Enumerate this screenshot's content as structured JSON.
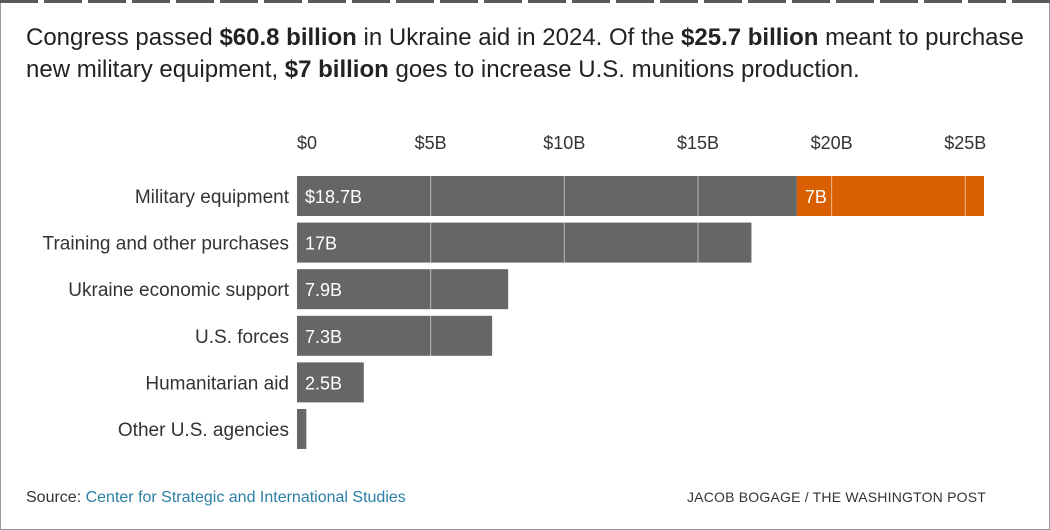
{
  "headline": {
    "part1": "Congress passed ",
    "bold1": "$60.8 billion",
    "part2": " in Ukraine aid in 2024. Of the ",
    "bold2": "$25.7 billion",
    "part3": " meant to purchase new military equipment, ",
    "bold3": "$7 billion",
    "part4": " goes to increase U.S. munitions production."
  },
  "chart_data": {
    "type": "bar",
    "orientation": "horizontal",
    "stacked": true,
    "xlim": [
      0,
      25.7
    ],
    "x_ticks": [
      {
        "value": 0,
        "label": "$0"
      },
      {
        "value": 5,
        "label": "$5B"
      },
      {
        "value": 10,
        "label": "$10B"
      },
      {
        "value": 15,
        "label": "$15B"
      },
      {
        "value": 20,
        "label": "$20B"
      },
      {
        "value": 25,
        "label": "$25B"
      }
    ],
    "grid": true,
    "categories": [
      "Military equipment",
      "Training and other purchases",
      "Ukraine economic support",
      "U.S. forces",
      "Humanitarian aid",
      "Other U.S. agencies"
    ],
    "series": [
      {
        "values": [
          18.7,
          17,
          7.9,
          7.3,
          2.5,
          0.35
        ],
        "labels": [
          "$18.7B",
          "17B",
          "7.9B",
          "7.3B",
          "2.5B",
          ""
        ],
        "color": "#666666"
      },
      {
        "values": [
          7,
          0,
          0,
          0,
          0,
          0
        ],
        "labels": [
          "7B",
          "",
          "",
          "",
          "",
          ""
        ],
        "color": "#d95f02"
      }
    ]
  },
  "footer": {
    "source_label": "Source: ",
    "source_link": "Center for Strategic and International Studies",
    "credit": "JACOB BOGAGE / THE WASHINGTON POST"
  }
}
